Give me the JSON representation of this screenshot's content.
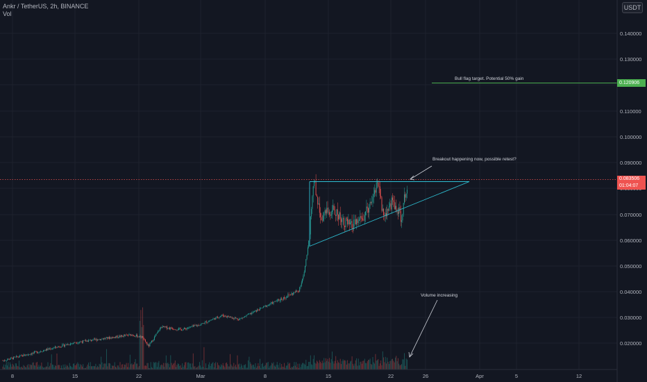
{
  "header": {
    "symbol_line": "Ankr / TetherUS, 2h, BINANCE",
    "indicator": "Vol"
  },
  "currency_button": "USDT",
  "annotations": {
    "bull_flag": "Bull flag target.  Potential 50% gain",
    "breakout": "Breakout happening now, possible retest?",
    "volume": "Volume increasing"
  },
  "price_labels": {
    "target": "0.120906",
    "current": "0.083506",
    "countdown": "01:04:07"
  },
  "colors": {
    "background": "#131722",
    "grid": "#1e222d",
    "up": "#26a69a",
    "down": "#ef5350",
    "pattern": "#2ebfd3",
    "target_line": "#4caf50"
  },
  "chart_data": {
    "type": "candlestick",
    "y_ticks": [
      "0.140000",
      "0.130000",
      "0.120000",
      "0.110000",
      "0.100000",
      "0.090000",
      "0.080000",
      "0.070000",
      "0.060000",
      "0.050000",
      "0.040000",
      "0.030000",
      "0.020000"
    ],
    "x_ticks": [
      "8",
      "15",
      "22",
      "Mar",
      "8",
      "15",
      "22",
      "26",
      "Apr",
      "5",
      "12"
    ],
    "ylim": [
      0.012,
      0.153
    ],
    "price_path": [
      [
        "8",
        0.0145
      ],
      [
        "15",
        0.0215
      ],
      [
        "20",
        0.0245
      ],
      [
        "22",
        0.0235
      ],
      [
        "22.5",
        0.02
      ],
      [
        "23.5",
        0.0275
      ],
      [
        "25",
        0.0265
      ],
      [
        "Mar",
        0.0285
      ],
      [
        "3",
        0.032
      ],
      [
        "5",
        0.0305
      ],
      [
        "8",
        0.0355
      ],
      [
        "10",
        0.039
      ],
      [
        "11",
        0.0415
      ],
      [
        "11.5",
        0.048
      ],
      [
        "12",
        0.059
      ],
      [
        "12.5",
        0.085
      ],
      [
        "13",
        0.07
      ],
      [
        "15",
        0.073
      ],
      [
        "17",
        0.066
      ],
      [
        "19",
        0.07
      ],
      [
        "20.5",
        0.084
      ],
      [
        "21",
        0.07
      ],
      [
        "22",
        0.076
      ],
      [
        "23",
        0.07
      ],
      [
        "23.5",
        0.0835
      ]
    ],
    "triangle": {
      "resistance": 0.0822,
      "support_start": 0.0578,
      "apex_date": "28 Mar"
    },
    "target_level": 0.120906,
    "current_price": 0.083506
  }
}
